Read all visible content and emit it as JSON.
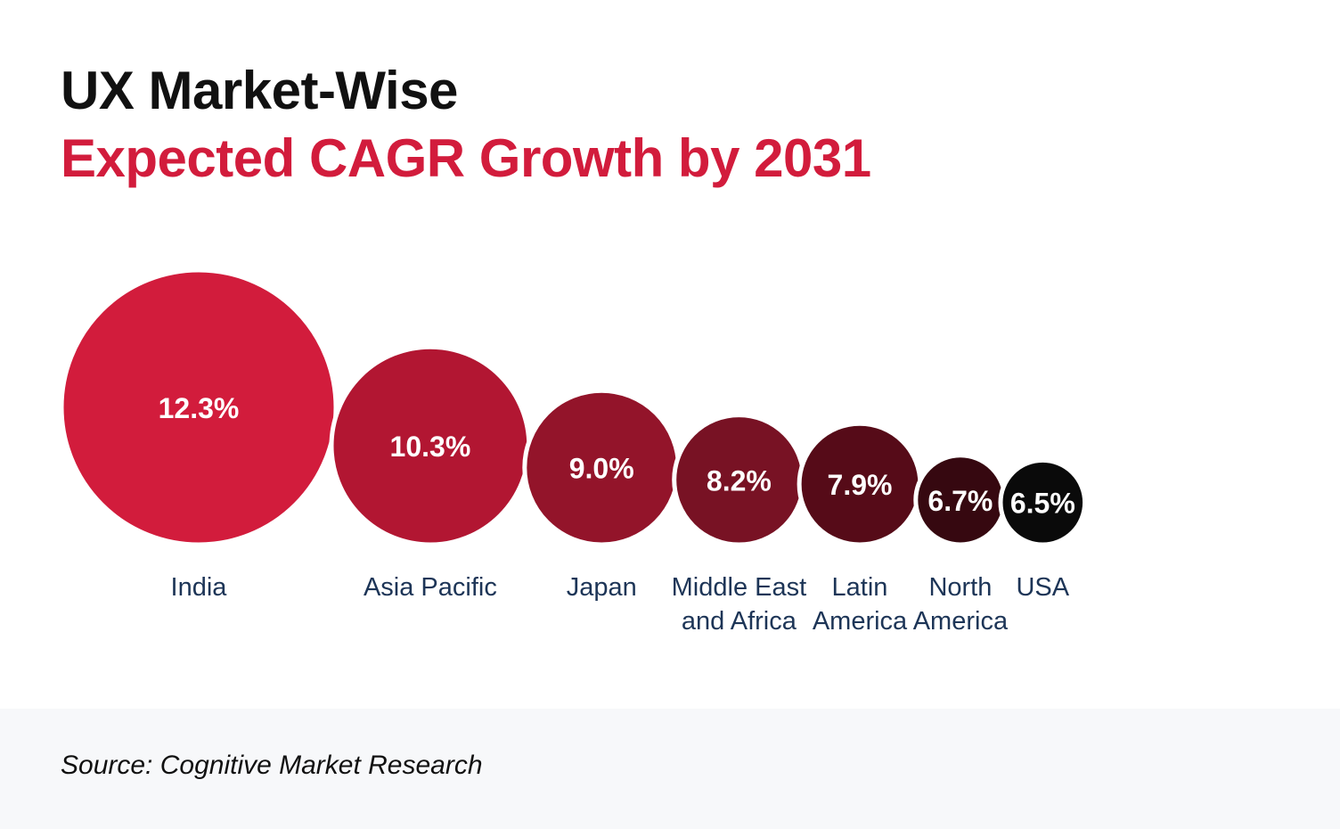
{
  "title": {
    "line1": "UX Market-Wise",
    "line2": "Expected CAGR Growth by 2031"
  },
  "colors": {
    "accent": "#d21c3c",
    "title_dark": "#111111",
    "label_text": "#1d3557",
    "footer_bg": "#f7f8fa"
  },
  "chart_data": {
    "type": "bubble",
    "title": "Expected CAGR Growth by 2031",
    "unit": "%",
    "categories": [
      "India",
      "Asia Pacific",
      "Japan",
      "Middle East and Africa",
      "Latin America",
      "North America",
      "USA"
    ],
    "values": [
      12.3,
      10.3,
      9.0,
      8.2,
      7.9,
      6.7,
      6.5
    ],
    "value_labels": [
      "12.3%",
      "10.3%",
      "9.0%",
      "8.2%",
      "7.9%",
      "6.7%",
      "6.5%"
    ],
    "label_lines": [
      [
        "India"
      ],
      [
        "Asia Pacific"
      ],
      [
        "Japan"
      ],
      [
        "Middle East",
        "and Africa"
      ],
      [
        "Latin",
        "America"
      ],
      [
        "North",
        "America"
      ],
      [
        "USA"
      ]
    ],
    "bubble_colors": [
      "#d21c3c",
      "#b21632",
      "#93142a",
      "#781224",
      "#560b18",
      "#360810",
      "#0a0a0a"
    ]
  },
  "footer": {
    "source": "Source: Cognitive Market Research"
  }
}
